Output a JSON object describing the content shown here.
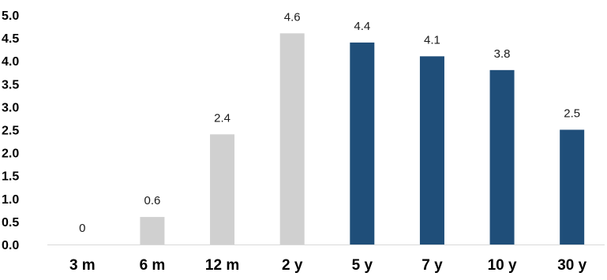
{
  "chart_data": {
    "type": "bar",
    "title": "",
    "xlabel": "",
    "ylabel": "",
    "categories": [
      "3 m",
      "6 m",
      "12 m",
      "2 y",
      "5 y",
      "7 y",
      "10 y",
      "30 y"
    ],
    "values": [
      0,
      0.6,
      2.4,
      4.6,
      4.4,
      4.1,
      3.8,
      2.5
    ],
    "data_labels": [
      "0",
      "0.6",
      "2.4",
      "4.6",
      "4.4",
      "4.1",
      "3.8",
      "2.5"
    ],
    "bar_colors": [
      "#d0d0d0",
      "#d0d0d0",
      "#d0d0d0",
      "#d0d0d0",
      "#1f4e79",
      "#1f4e79",
      "#1f4e79",
      "#1f4e79"
    ],
    "ylim": [
      0,
      5.0
    ],
    "yticks": [
      "0.0",
      "0.5",
      "1.0",
      "1.5",
      "2.0",
      "2.5",
      "3.0",
      "3.5",
      "4.0",
      "4.5",
      "5.0"
    ],
    "grid": false,
    "legend": "none",
    "baseline_color": "#d9d9d9"
  }
}
